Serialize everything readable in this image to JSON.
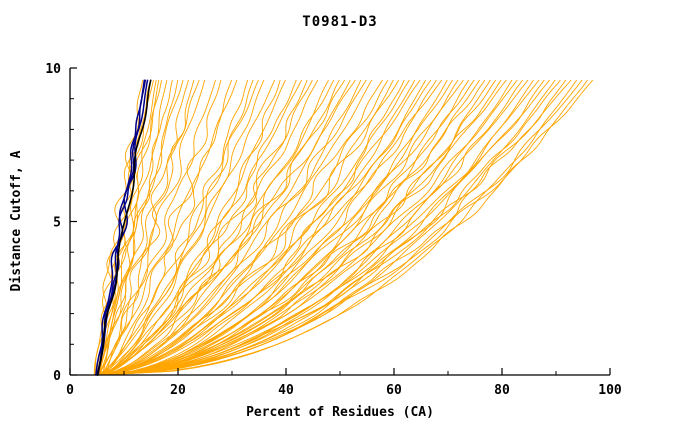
{
  "title": "T0981-D3",
  "chart_data": {
    "type": "line",
    "title": "T0981-D3",
    "xlabel": "Percent of Residues (CA)",
    "ylabel": "Distance Cutoff, A",
    "xlim": [
      0,
      100
    ],
    "ylim": [
      0,
      10
    ],
    "x_ticks": [
      0,
      20,
      40,
      60,
      80,
      100
    ],
    "x_minor_ticks": [
      10,
      30,
      50,
      70,
      90
    ],
    "y_ticks": [
      0,
      5,
      10
    ],
    "y_minor_ticks": [
      1,
      2,
      3,
      4,
      6,
      7,
      8,
      9
    ],
    "grid": false,
    "legend": "none",
    "top_cutoff": 9.65,
    "curve_encoding": "each curve = [percent at cutoff 0, percent at top cutoff, shape exponent]",
    "series_groups": [
      {
        "name": "other-models",
        "color": "#ffa500",
        "stroke_width": 0.9,
        "curves": [
          [
            5,
            13.5,
            1.1
          ],
          [
            5.5,
            14,
            1.0
          ],
          [
            4.5,
            15,
            1.2
          ],
          [
            6,
            16,
            0.95
          ],
          [
            5,
            17,
            1.05
          ],
          [
            5.5,
            18,
            0.9
          ],
          [
            6,
            19,
            1.0
          ],
          [
            4.8,
            20,
            0.85
          ],
          [
            5.2,
            21,
            1.1
          ],
          [
            6.5,
            22,
            0.9
          ],
          [
            5.8,
            23,
            0.8
          ],
          [
            5,
            24,
            1.0
          ],
          [
            6,
            25,
            0.9
          ],
          [
            4.6,
            15.5,
            1.15
          ],
          [
            5.4,
            16.5,
            1.0
          ],
          [
            5,
            27,
            0.8
          ],
          [
            6,
            28,
            0.75
          ],
          [
            5.5,
            30,
            0.7
          ],
          [
            4.8,
            31,
            0.85
          ],
          [
            6.2,
            33,
            0.7
          ],
          [
            5,
            34,
            0.65
          ],
          [
            5.6,
            35,
            0.8
          ],
          [
            6,
            36,
            0.7
          ],
          [
            4.9,
            38,
            0.75
          ],
          [
            5.3,
            39,
            0.6
          ],
          [
            6.1,
            40,
            0.7
          ],
          [
            5,
            42,
            0.65
          ],
          [
            5.7,
            43,
            0.75
          ],
          [
            6,
            44,
            0.6
          ],
          [
            5.2,
            45,
            0.7
          ],
          [
            4.7,
            46,
            0.65
          ],
          [
            5.9,
            48,
            0.6
          ],
          [
            5.4,
            49,
            0.7
          ],
          [
            6.3,
            50,
            0.62
          ],
          [
            5,
            51,
            0.68
          ],
          [
            5.6,
            52,
            0.6
          ],
          [
            4.8,
            53,
            0.72
          ],
          [
            6,
            54,
            0.58
          ],
          [
            5.3,
            55,
            0.65
          ],
          [
            5.8,
            56,
            0.6
          ],
          [
            5,
            58,
            0.6
          ],
          [
            4.7,
            59,
            0.58
          ],
          [
            5.5,
            60,
            0.55
          ],
          [
            6,
            61,
            0.62
          ],
          [
            4.9,
            62,
            0.5
          ],
          [
            5.4,
            63,
            0.58
          ],
          [
            6.2,
            64,
            0.52
          ],
          [
            5,
            65,
            0.6
          ],
          [
            5.7,
            66,
            0.5
          ],
          [
            5.2,
            67,
            0.57
          ],
          [
            6,
            68,
            0.52
          ],
          [
            4.8,
            69,
            0.6
          ],
          [
            5.5,
            70,
            0.48
          ],
          [
            5.9,
            71,
            0.55
          ],
          [
            5.1,
            72,
            0.5
          ],
          [
            6.1,
            73,
            0.57
          ],
          [
            5.3,
            74,
            0.48
          ],
          [
            5.6,
            75,
            0.54
          ],
          [
            4.9,
            76,
            0.5
          ],
          [
            6,
            77,
            0.55
          ],
          [
            5.2,
            78,
            0.47
          ],
          [
            5.8,
            79,
            0.52
          ],
          [
            5,
            80,
            0.5
          ],
          [
            5.5,
            81,
            0.55
          ],
          [
            6.2,
            82,
            0.46
          ],
          [
            4.8,
            83,
            0.52
          ],
          [
            5.4,
            84,
            0.48
          ],
          [
            5.9,
            85,
            0.53
          ],
          [
            5.1,
            86,
            0.45
          ],
          [
            5.6,
            87,
            0.5
          ],
          [
            6,
            88,
            0.47
          ],
          [
            5.2,
            89,
            0.52
          ],
          [
            4.9,
            90,
            0.45
          ],
          [
            5.5,
            91,
            0.5
          ],
          [
            5.8,
            92,
            0.47
          ],
          [
            5,
            93,
            0.52
          ],
          [
            6.1,
            94,
            0.44
          ],
          [
            5.3,
            95,
            0.48
          ],
          [
            5.6,
            96,
            0.45
          ],
          [
            5.2,
            97,
            0.5
          ]
        ]
      },
      {
        "name": "highlighted-models-blue",
        "color": "#00008b",
        "stroke_width": 1.5,
        "curves": [
          [
            5,
            13.8,
            0.95
          ],
          [
            5.2,
            14.4,
            1.0
          ],
          [
            4.8,
            14.0,
            1.05
          ]
        ]
      },
      {
        "name": "highlighted-model-black",
        "color": "#000000",
        "stroke_width": 1.6,
        "curves": [
          [
            5.1,
            15.0,
            1.0
          ]
        ]
      }
    ]
  }
}
